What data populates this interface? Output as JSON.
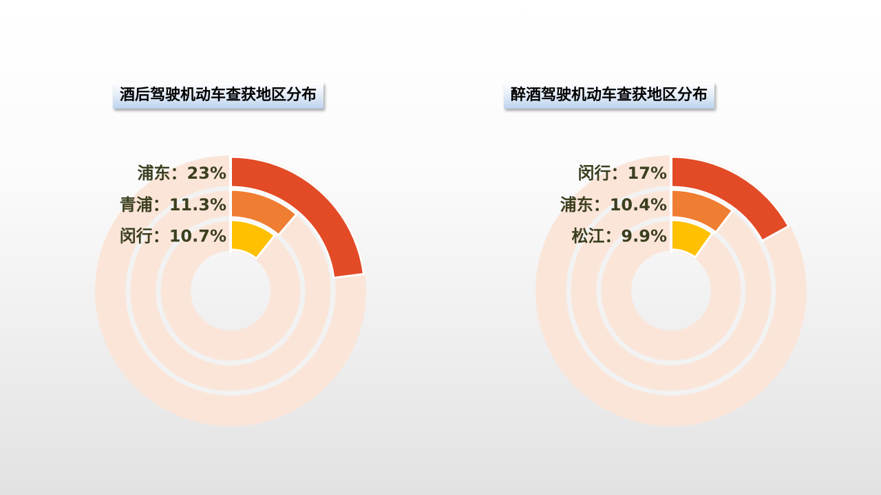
{
  "charts": {
    "left": {
      "title": "酒后驾驶机动车查获地区分布"
    },
    "right": {
      "title": "醉酒驾驶机动车查获地区分布"
    }
  },
  "colors": {
    "track": "#fbe5d9",
    "ring_outer": "#e24b26",
    "ring_middle": "#ef7d32",
    "ring_inner": "#fec000",
    "label_text": "#3b3f1f"
  },
  "chart_data": [
    {
      "type": "radial-bar",
      "title": "酒后驾驶机动车查获地区分布",
      "max": 100,
      "series": [
        {
          "name": "浦东",
          "value": 23,
          "label": "浦东：23%"
        },
        {
          "name": "青浦",
          "value": 11.3,
          "label": "青浦：11.3%"
        },
        {
          "name": "闵行",
          "value": 10.7,
          "label": "闵行：10.7%"
        }
      ]
    },
    {
      "type": "radial-bar",
      "title": "醉酒驾驶机动车查获地区分布",
      "max": 100,
      "series": [
        {
          "name": "闵行",
          "value": 17,
          "label": "闵行：17%"
        },
        {
          "name": "浦东",
          "value": 10.4,
          "label": "浦东：10.4%"
        },
        {
          "name": "松江",
          "value": 9.9,
          "label": "松江：9.9%"
        }
      ]
    }
  ]
}
